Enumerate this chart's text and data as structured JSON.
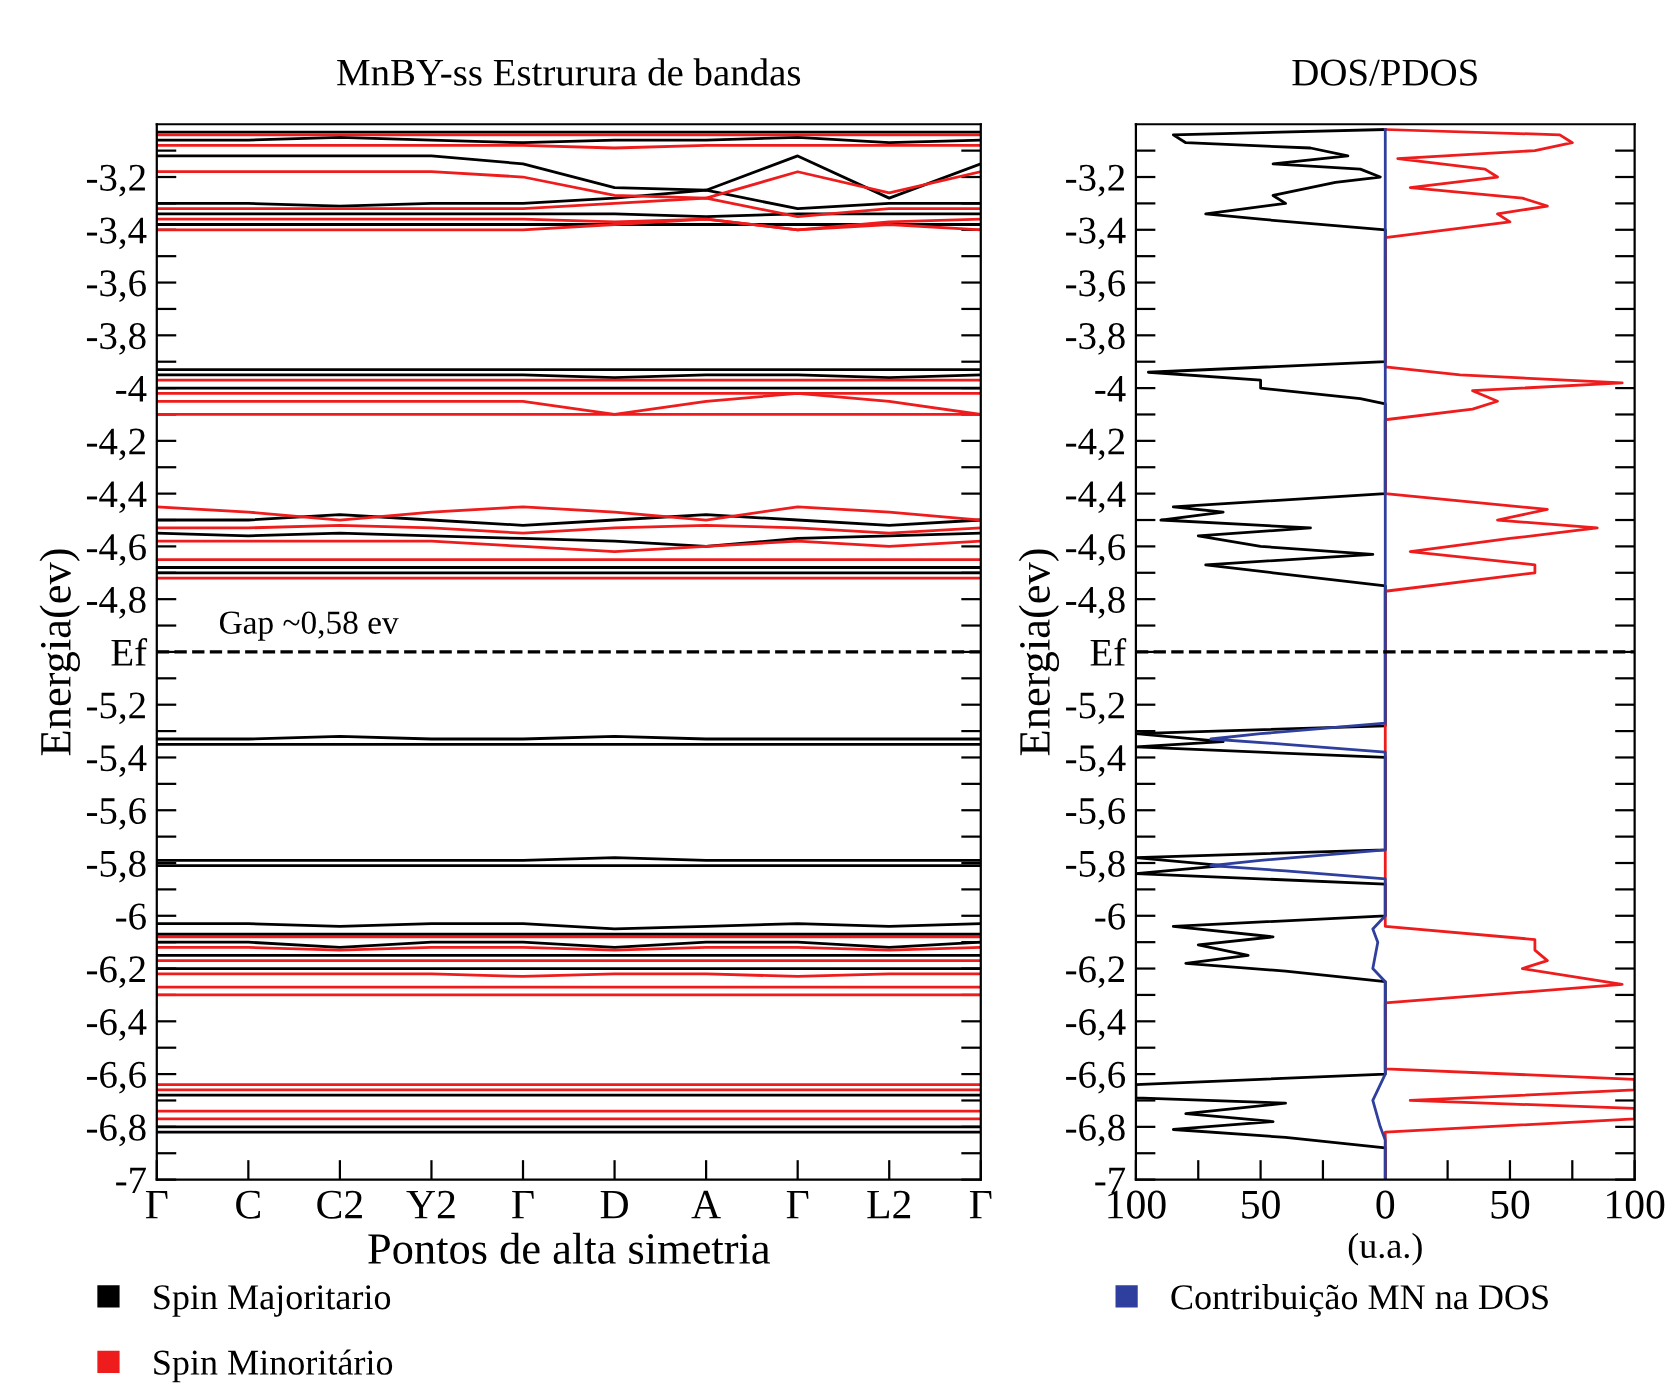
{
  "chart_data": [
    {
      "type": "line",
      "title": "MnBY-ss Estrurura de bandas",
      "xlabel": "Pontos de alta simetria",
      "ylabel": "Energia(ev)",
      "categories": [
        "Γ",
        "C",
        "C2",
        "Y2",
        "Γ",
        "D",
        "A",
        "Γ",
        "L2",
        "Γ"
      ],
      "ylim": [
        -7,
        -3
      ],
      "yticks": [
        {
          "value": -3.1,
          "label": null
        },
        {
          "value": -3.2,
          "label": "-3,2"
        },
        {
          "value": -3.3,
          "label": null
        },
        {
          "value": -3.4,
          "label": "-3,4"
        },
        {
          "value": -3.5,
          "label": null
        },
        {
          "value": -3.6,
          "label": "-3,6"
        },
        {
          "value": -3.7,
          "label": null
        },
        {
          "value": -3.8,
          "label": "-3,8"
        },
        {
          "value": -3.9,
          "label": null
        },
        -4,
        {
          "value": -4.1,
          "label": null
        },
        {
          "value": -4.2,
          "label": "-4,2"
        },
        {
          "value": -4.3,
          "label": null
        },
        {
          "value": -4.4,
          "label": "-4,4"
        },
        {
          "value": -4.5,
          "label": null
        },
        {
          "value": -4.6,
          "label": "-4,6"
        },
        {
          "value": -4.7,
          "label": null
        },
        {
          "value": -4.8,
          "label": "-4,8"
        },
        {
          "value": -4.9,
          "label": null
        },
        {
          "value": -5,
          "label": "Ef"
        },
        {
          "value": -5.1,
          "label": null
        },
        {
          "value": -5.2,
          "label": "-5,2"
        },
        {
          "value": -5.3,
          "label": null
        },
        {
          "value": -5.4,
          "label": "-5,4"
        },
        {
          "value": -5.5,
          "label": null
        },
        {
          "value": -5.6,
          "label": "-5,6"
        },
        {
          "value": -5.7,
          "label": null
        },
        {
          "value": -5.8,
          "label": "-5,8"
        },
        {
          "value": -5.9,
          "label": null
        },
        -6,
        {
          "value": -6.1,
          "label": null
        },
        {
          "value": -6.2,
          "label": "-6,2"
        },
        {
          "value": -6.3,
          "label": null
        },
        {
          "value": -6.4,
          "label": "-6,4"
        },
        {
          "value": -6.5,
          "label": null
        },
        {
          "value": -6.6,
          "label": "-6,6"
        },
        {
          "value": -6.7,
          "label": null
        },
        {
          "value": -6.8,
          "label": "-6,8"
        },
        {
          "value": -6.9,
          "label": null
        },
        -7
      ],
      "ref_lines": [
        {
          "axis": "y",
          "value": -5,
          "label": null,
          "color": "#000000",
          "line_style": "dashed"
        }
      ],
      "annotations": [
        "Gap ~0,58 ev"
      ],
      "legend": "bottom left",
      "grid": false,
      "marker": "none",
      "line_style": "solid",
      "series": [
        {
          "name": "Spin Majoritario",
          "color": "#000000",
          "values": [
            -3.03,
            -3.03,
            -3.03,
            -3.03,
            -3.03,
            -3.03,
            -3.03,
            -3.03,
            -3.03,
            -3.03
          ]
        },
        {
          "color": "#000000",
          "values": [
            -3.06,
            -3.06,
            -3.05,
            -3.06,
            -3.07,
            -3.06,
            -3.06,
            -3.05,
            -3.07,
            -3.06
          ]
        },
        {
          "color": "#000000",
          "values": [
            -3.12,
            -3.12,
            -3.12,
            -3.12,
            -3.15,
            -3.24,
            -3.25,
            -3.12,
            -3.28,
            -3.15
          ]
        },
        {
          "color": "#000000",
          "values": [
            -3.3,
            -3.3,
            -3.31,
            -3.3,
            -3.3,
            -3.28,
            -3.25,
            -3.32,
            -3.3,
            -3.3
          ]
        },
        {
          "color": "#000000",
          "values": [
            -3.34,
            -3.34,
            -3.34,
            -3.34,
            -3.34,
            -3.34,
            -3.35,
            -3.34,
            -3.34,
            -3.34
          ]
        },
        {
          "color": "#000000",
          "values": [
            -3.38,
            -3.38,
            -3.38,
            -3.38,
            -3.38,
            -3.38,
            -3.38,
            -3.38,
            -3.38,
            -3.38
          ]
        },
        {
          "color": "#000000",
          "values": [
            -3.93,
            -3.93,
            -3.93,
            -3.93,
            -3.93,
            -3.93,
            -3.93,
            -3.93,
            -3.93,
            -3.93
          ]
        },
        {
          "color": "#000000",
          "values": [
            -3.95,
            -3.95,
            -3.95,
            -3.95,
            -3.95,
            -3.96,
            -3.95,
            -3.95,
            -3.96,
            -3.95
          ]
        },
        {
          "color": "#000000",
          "values": [
            -4.0,
            -4.0,
            -4.0,
            -4.0,
            -4.0,
            -4.0,
            -4.0,
            -4.0,
            -4.0,
            -4.0
          ]
        },
        {
          "color": "#000000",
          "values": [
            -4.5,
            -4.5,
            -4.48,
            -4.5,
            -4.52,
            -4.5,
            -4.48,
            -4.5,
            -4.52,
            -4.5
          ]
        },
        {
          "color": "#000000",
          "values": [
            -4.55,
            -4.56,
            -4.55,
            -4.56,
            -4.57,
            -4.58,
            -4.6,
            -4.57,
            -4.56,
            -4.55
          ]
        },
        {
          "color": "#000000",
          "values": [
            -4.68,
            -4.68,
            -4.68,
            -4.68,
            -4.68,
            -4.68,
            -4.68,
            -4.68,
            -4.68,
            -4.68
          ]
        },
        {
          "color": "#000000",
          "values": [
            -4.7,
            -4.7,
            -4.7,
            -4.7,
            -4.7,
            -4.7,
            -4.7,
            -4.7,
            -4.7,
            -4.7
          ]
        },
        {
          "color": "#000000",
          "values": [
            -5.33,
            -5.33,
            -5.32,
            -5.33,
            -5.33,
            -5.32,
            -5.33,
            -5.33,
            -5.33,
            -5.33
          ]
        },
        {
          "color": "#000000",
          "values": [
            -5.35,
            -5.35,
            -5.35,
            -5.35,
            -5.35,
            -5.35,
            -5.35,
            -5.35,
            -5.35,
            -5.35
          ]
        },
        {
          "color": "#000000",
          "values": [
            -5.79,
            -5.79,
            -5.79,
            -5.79,
            -5.79,
            -5.78,
            -5.79,
            -5.79,
            -5.79,
            -5.79
          ]
        },
        {
          "color": "#000000",
          "values": [
            -5.81,
            -5.81,
            -5.81,
            -5.81,
            -5.81,
            -5.81,
            -5.81,
            -5.81,
            -5.81,
            -5.81
          ]
        },
        {
          "color": "#000000",
          "values": [
            -6.03,
            -6.03,
            -6.04,
            -6.03,
            -6.03,
            -6.05,
            -6.04,
            -6.03,
            -6.04,
            -6.03
          ]
        },
        {
          "color": "#000000",
          "values": [
            -6.07,
            -6.07,
            -6.07,
            -6.07,
            -6.07,
            -6.07,
            -6.07,
            -6.07,
            -6.07,
            -6.07
          ]
        },
        {
          "color": "#000000",
          "values": [
            -6.1,
            -6.1,
            -6.12,
            -6.1,
            -6.1,
            -6.12,
            -6.1,
            -6.1,
            -6.12,
            -6.1
          ]
        },
        {
          "color": "#000000",
          "values": [
            -6.15,
            -6.15,
            -6.15,
            -6.15,
            -6.15,
            -6.15,
            -6.15,
            -6.15,
            -6.15,
            -6.15
          ]
        },
        {
          "color": "#000000",
          "values": [
            -6.2,
            -6.2,
            -6.2,
            -6.2,
            -6.2,
            -6.2,
            -6.2,
            -6.2,
            -6.2,
            -6.2
          ]
        },
        {
          "color": "#000000",
          "values": [
            -6.68,
            -6.68,
            -6.68,
            -6.68,
            -6.68,
            -6.68,
            -6.68,
            -6.68,
            -6.68,
            -6.68
          ]
        },
        {
          "color": "#000000",
          "values": [
            -6.8,
            -6.8,
            -6.8,
            -6.8,
            -6.8,
            -6.8,
            -6.8,
            -6.8,
            -6.8,
            -6.8
          ]
        },
        {
          "color": "#000000",
          "values": [
            -6.82,
            -6.82,
            -6.82,
            -6.82,
            -6.82,
            -6.82,
            -6.82,
            -6.82,
            -6.82,
            -6.82
          ]
        },
        {
          "name": "Spin Minoritário",
          "color": "#ee1c1c",
          "values": [
            -3.04,
            -3.04,
            -3.04,
            -3.04,
            -3.04,
            -3.04,
            -3.04,
            -3.04,
            -3.04,
            -3.04
          ]
        },
        {
          "color": "#ee1c1c",
          "values": [
            -3.08,
            -3.08,
            -3.08,
            -3.08,
            -3.08,
            -3.09,
            -3.08,
            -3.08,
            -3.08,
            -3.08
          ]
        },
        {
          "color": "#ee1c1c",
          "values": [
            -3.18,
            -3.18,
            -3.18,
            -3.18,
            -3.2,
            -3.27,
            -3.28,
            -3.18,
            -3.26,
            -3.18
          ]
        },
        {
          "color": "#ee1c1c",
          "values": [
            -3.32,
            -3.32,
            -3.32,
            -3.32,
            -3.32,
            -3.3,
            -3.28,
            -3.35,
            -3.32,
            -3.32
          ]
        },
        {
          "color": "#ee1c1c",
          "values": [
            -3.36,
            -3.36,
            -3.36,
            -3.36,
            -3.36,
            -3.37,
            -3.36,
            -3.4,
            -3.37,
            -3.36
          ]
        },
        {
          "color": "#ee1c1c",
          "values": [
            -3.4,
            -3.4,
            -3.4,
            -3.4,
            -3.4,
            -3.38,
            -3.36,
            -3.4,
            -3.38,
            -3.4
          ]
        },
        {
          "color": "#ee1c1c",
          "values": [
            -3.97,
            -3.97,
            -3.97,
            -3.97,
            -3.97,
            -3.97,
            -3.97,
            -3.97,
            -3.97,
            -3.97
          ]
        },
        {
          "color": "#ee1c1c",
          "values": [
            -4.02,
            -4.02,
            -4.02,
            -4.02,
            -4.02,
            -4.02,
            -4.02,
            -4.02,
            -4.02,
            -4.02
          ]
        },
        {
          "color": "#ee1c1c",
          "values": [
            -4.05,
            -4.05,
            -4.05,
            -4.05,
            -4.05,
            -4.1,
            -4.05,
            -4.02,
            -4.05,
            -4.1
          ]
        },
        {
          "color": "#ee1c1c",
          "values": [
            -4.1,
            -4.1,
            -4.1,
            -4.1,
            -4.1,
            -4.1,
            -4.1,
            -4.1,
            -4.1,
            -4.1
          ]
        },
        {
          "color": "#ee1c1c",
          "values": [
            -4.45,
            -4.47,
            -4.5,
            -4.47,
            -4.45,
            -4.47,
            -4.5,
            -4.45,
            -4.47,
            -4.5
          ]
        },
        {
          "color": "#ee1c1c",
          "values": [
            -4.53,
            -4.53,
            -4.52,
            -4.53,
            -4.55,
            -4.53,
            -4.52,
            -4.53,
            -4.55,
            -4.53
          ]
        },
        {
          "color": "#ee1c1c",
          "values": [
            -4.58,
            -4.58,
            -4.58,
            -4.58,
            -4.6,
            -4.62,
            -4.6,
            -4.58,
            -4.6,
            -4.58
          ]
        },
        {
          "color": "#ee1c1c",
          "values": [
            -4.65,
            -4.65,
            -4.65,
            -4.65,
            -4.65,
            -4.65,
            -4.65,
            -4.65,
            -4.65,
            -4.65
          ]
        },
        {
          "color": "#ee1c1c",
          "values": [
            -4.72,
            -4.72,
            -4.72,
            -4.72,
            -4.72,
            -4.72,
            -4.72,
            -4.72,
            -4.72,
            -4.72
          ]
        },
        {
          "color": "#ee1c1c",
          "values": [
            -6.08,
            -6.08,
            -6.08,
            -6.08,
            -6.08,
            -6.08,
            -6.08,
            -6.08,
            -6.08,
            -6.08
          ]
        },
        {
          "color": "#ee1c1c",
          "values": [
            -6.12,
            -6.12,
            -6.13,
            -6.12,
            -6.12,
            -6.13,
            -6.12,
            -6.12,
            -6.13,
            -6.12
          ]
        },
        {
          "color": "#ee1c1c",
          "values": [
            -6.17,
            -6.17,
            -6.17,
            -6.17,
            -6.17,
            -6.17,
            -6.17,
            -6.17,
            -6.17,
            -6.17
          ]
        },
        {
          "color": "#ee1c1c",
          "values": [
            -6.22,
            -6.22,
            -6.22,
            -6.22,
            -6.23,
            -6.22,
            -6.22,
            -6.23,
            -6.22,
            -6.22
          ]
        },
        {
          "color": "#ee1c1c",
          "values": [
            -6.27,
            -6.27,
            -6.27,
            -6.27,
            -6.27,
            -6.27,
            -6.27,
            -6.27,
            -6.27,
            -6.27
          ]
        },
        {
          "color": "#ee1c1c",
          "values": [
            -6.3,
            -6.3,
            -6.3,
            -6.3,
            -6.3,
            -6.3,
            -6.3,
            -6.3,
            -6.3,
            -6.3
          ]
        },
        {
          "color": "#ee1c1c",
          "values": [
            -6.64,
            -6.64,
            -6.64,
            -6.64,
            -6.64,
            -6.64,
            -6.64,
            -6.64,
            -6.64,
            -6.64
          ]
        },
        {
          "color": "#ee1c1c",
          "values": [
            -6.66,
            -6.66,
            -6.66,
            -6.66,
            -6.66,
            -6.66,
            -6.66,
            -6.66,
            -6.66,
            -6.66
          ]
        },
        {
          "color": "#ee1c1c",
          "values": [
            -6.74,
            -6.74,
            -6.74,
            -6.74,
            -6.74,
            -6.74,
            -6.74,
            -6.74,
            -6.74,
            -6.74
          ]
        },
        {
          "color": "#ee1c1c",
          "values": [
            -6.77,
            -6.77,
            -6.77,
            -6.77,
            -6.77,
            -6.77,
            -6.77,
            -6.77,
            -6.77,
            -6.77
          ]
        }
      ]
    },
    {
      "type": "line",
      "title": "DOS/PDOS",
      "xlabel": "(u.a.)",
      "ylabel": "Energia(ev)",
      "xlim": [
        -100,
        100
      ],
      "xticks": [
        {
          "value": -100,
          "label": "100"
        },
        {
          "value": -75,
          "label": null
        },
        {
          "value": -50,
          "label": "50"
        },
        {
          "value": -25,
          "label": null
        },
        0,
        {
          "value": 25,
          "label": null
        },
        50,
        {
          "value": 75,
          "label": null
        },
        100
      ],
      "ylim": [
        -7,
        -3
      ],
      "yticks": [
        {
          "value": -3.1,
          "label": null
        },
        {
          "value": -3.2,
          "label": "-3,2"
        },
        {
          "value": -3.3,
          "label": null
        },
        {
          "value": -3.4,
          "label": "-3,4"
        },
        {
          "value": -3.5,
          "label": null
        },
        {
          "value": -3.6,
          "label": "-3,6"
        },
        {
          "value": -3.7,
          "label": null
        },
        {
          "value": -3.8,
          "label": "-3,8"
        },
        {
          "value": -3.9,
          "label": null
        },
        -4,
        {
          "value": -4.1,
          "label": null
        },
        {
          "value": -4.2,
          "label": "-4,2"
        },
        {
          "value": -4.3,
          "label": null
        },
        {
          "value": -4.4,
          "label": "-4,4"
        },
        {
          "value": -4.5,
          "label": null
        },
        {
          "value": -4.6,
          "label": "-4,6"
        },
        {
          "value": -4.7,
          "label": null
        },
        {
          "value": -4.8,
          "label": "-4,8"
        },
        {
          "value": -4.9,
          "label": null
        },
        {
          "value": -5,
          "label": "Ef"
        },
        {
          "value": -5.1,
          "label": null
        },
        {
          "value": -5.2,
          "label": "-5,2"
        },
        {
          "value": -5.3,
          "label": null
        },
        {
          "value": -5.4,
          "label": "-5,4"
        },
        {
          "value": -5.5,
          "label": null
        },
        {
          "value": -5.6,
          "label": "-5,6"
        },
        {
          "value": -5.7,
          "label": null
        },
        {
          "value": -5.8,
          "label": "-5,8"
        },
        {
          "value": -5.9,
          "label": null
        },
        -6,
        {
          "value": -6.1,
          "label": null
        },
        {
          "value": -6.2,
          "label": "-6,2"
        },
        {
          "value": -6.3,
          "label": null
        },
        {
          "value": -6.4,
          "label": "-6,4"
        },
        {
          "value": -6.5,
          "label": null
        },
        {
          "value": -6.6,
          "label": "-6,6"
        },
        {
          "value": -6.7,
          "label": null
        },
        {
          "value": -6.8,
          "label": "-6,8"
        },
        {
          "value": -6.9,
          "label": null
        },
        -7
      ],
      "ref_lines": [
        {
          "axis": "y",
          "value": -5,
          "label": null,
          "color": "#000000",
          "line_style": "dashed"
        }
      ],
      "legend": "bottom left",
      "grid": false,
      "marker": "none",
      "line_style": "solid",
      "series": [
        {
          "color": "#000000",
          "x": [
            0,
            -85,
            -80,
            -30,
            -15,
            -45,
            -10,
            -2,
            -20,
            -45,
            -40,
            -72,
            -50,
            0,
            0,
            -95,
            -50,
            -50,
            -10,
            0,
            0,
            -85,
            -65,
            -90,
            -30,
            -75,
            -50,
            -5,
            -72,
            -45,
            0,
            0,
            -100,
            -65,
            -100,
            0,
            0,
            -100,
            -65,
            -100,
            0,
            0,
            -85,
            -45,
            -75,
            -55,
            -80,
            -40,
            0,
            0,
            -100,
            -100,
            -40,
            -80,
            -45,
            -85,
            -40,
            0,
            0
          ],
          "values": [
            -3.02,
            -3.04,
            -3.07,
            -3.09,
            -3.12,
            -3.15,
            -3.17,
            -3.2,
            -3.22,
            -3.27,
            -3.3,
            -3.34,
            -3.36,
            -3.4,
            -3.9,
            -3.94,
            -3.97,
            -4.0,
            -4.04,
            -4.06,
            -4.4,
            -4.45,
            -4.47,
            -4.5,
            -4.53,
            -4.56,
            -4.6,
            -4.63,
            -4.67,
            -4.7,
            -4.75,
            -5.28,
            -5.31,
            -5.34,
            -5.36,
            -5.4,
            -5.75,
            -5.78,
            -5.81,
            -5.84,
            -5.88,
            -6.0,
            -6.04,
            -6.08,
            -6.11,
            -6.15,
            -6.18,
            -6.21,
            -6.25,
            -6.6,
            -6.64,
            -6.69,
            -6.71,
            -6.75,
            -6.78,
            -6.81,
            -6.84,
            -6.88,
            -7
          ]
        },
        {
          "color": "#ee1c1c",
          "x": [
            0,
            70,
            75,
            60,
            5,
            40,
            45,
            10,
            55,
            65,
            45,
            50,
            0,
            0,
            30,
            95,
            35,
            45,
            35,
            0,
            0,
            65,
            45,
            85,
            50,
            10,
            60,
            60,
            0,
            0,
            60,
            60,
            65,
            55,
            95,
            0,
            0,
            100,
            100,
            10,
            100,
            100,
            0,
            0
          ],
          "values": [
            -3.02,
            -3.04,
            -3.07,
            -3.1,
            -3.13,
            -3.17,
            -3.2,
            -3.24,
            -3.28,
            -3.31,
            -3.34,
            -3.37,
            -3.43,
            -3.92,
            -3.95,
            -3.98,
            -4.01,
            -4.05,
            -4.08,
            -4.12,
            -4.4,
            -4.46,
            -4.5,
            -4.53,
            -4.57,
            -4.62,
            -4.67,
            -4.7,
            -4.77,
            -6.04,
            -6.09,
            -6.13,
            -6.17,
            -6.2,
            -6.26,
            -6.33,
            -6.58,
            -6.62,
            -6.66,
            -6.7,
            -6.73,
            -6.77,
            -6.82,
            -7
          ]
        },
        {
          "name": "Contribuição MN na DOS",
          "color": "#2e3f9e",
          "x": [
            0,
            0,
            -50,
            -70,
            -40,
            0,
            0,
            -50,
            -70,
            -40,
            0,
            0,
            -5,
            -3,
            -5,
            0,
            0,
            -5,
            -2,
            0,
            0
          ],
          "values": [
            -3.02,
            -5.27,
            -5.31,
            -5.33,
            -5.35,
            -5.38,
            -5.75,
            -5.79,
            -5.81,
            -5.83,
            -5.86,
            -6.0,
            -6.05,
            -6.1,
            -6.2,
            -6.25,
            -6.6,
            -6.7,
            -6.8,
            -6.85,
            -7
          ]
        }
      ]
    }
  ]
}
